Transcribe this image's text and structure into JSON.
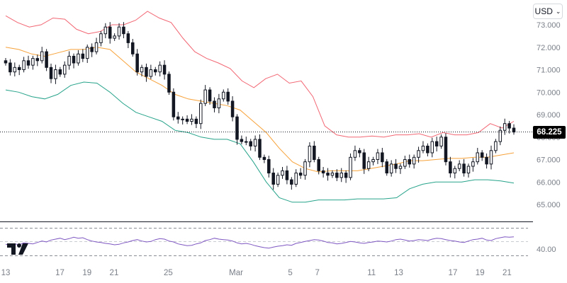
{
  "header": {
    "currency": "USD"
  },
  "current_price": "68.225",
  "colors": {
    "upper_band": "#f26673",
    "middle_band": "#f7a23a",
    "lower_band": "#26a38a",
    "rsi": "#7e57c2",
    "candle": "#131722"
  },
  "chart_data": [
    {
      "type": "candlestick",
      "y_ticks": [
        "73.000",
        "72.000",
        "71.000",
        "70.000",
        "69.000",
        "68.000",
        "67.000",
        "66.000",
        "65.000"
      ],
      "ylim": [
        64.7,
        73.1
      ],
      "x_ticks": [
        {
          "label": "13",
          "day": 0
        },
        {
          "label": "17",
          "day": 4
        },
        {
          "label": "19",
          "day": 6
        },
        {
          "label": "21",
          "day": 8
        },
        {
          "label": "25",
          "day": 12
        },
        {
          "label": "Mar",
          "day": 17
        },
        {
          "label": "5",
          "day": 21
        },
        {
          "label": "7",
          "day": 23
        },
        {
          "label": "11",
          "day": 27
        },
        {
          "label": "13",
          "day": 29
        },
        {
          "label": "17",
          "day": 33
        },
        {
          "label": "19",
          "day": 35
        },
        {
          "label": "21",
          "day": 37
        }
      ],
      "xlim": [
        0,
        37.5
      ],
      "series": [
        {
          "name": "",
          "role": "price",
          "values": [
            71.3,
            70.9,
            71.1,
            71.0,
            71.4,
            71.2,
            71.5,
            71.4,
            71.8,
            71.1,
            70.6,
            71.0,
            70.8,
            71.2,
            71.6,
            71.3,
            71.7,
            71.5,
            72.0,
            71.8,
            72.2,
            72.6,
            72.9,
            72.4,
            72.5,
            72.9,
            72.6,
            72.2,
            71.7,
            70.9,
            71.1,
            70.7,
            71.0,
            70.9,
            71.2,
            70.8,
            70.0,
            68.9,
            68.8,
            68.8,
            68.7,
            68.8,
            68.6,
            69.5,
            70.1,
            69.6,
            69.3,
            69.7,
            70.0,
            69.6,
            68.9,
            67.9,
            67.8,
            67.8,
            67.6,
            67.9,
            67.1,
            67.0,
            66.4,
            65.9,
            66.3,
            66.5,
            66.1,
            65.9,
            66.4,
            66.3,
            66.9,
            67.6,
            67.0,
            66.5,
            66.4,
            66.3,
            66.4,
            66.2,
            66.4,
            66.2,
            67.1,
            67.4,
            67.3,
            66.6,
            66.9,
            67.0,
            67.3,
            66.9,
            66.4,
            66.8,
            66.6,
            66.7,
            67.0,
            66.8,
            67.1,
            67.4,
            67.6,
            67.3,
            67.8,
            67.6,
            68.0,
            66.9,
            66.4,
            66.6,
            66.8,
            66.4,
            66.7,
            66.9,
            67.3,
            67.1,
            66.8,
            67.4,
            67.8,
            68.3,
            68.6,
            68.4,
            68.225
          ]
        },
        {
          "name": "",
          "role": "upper_band",
          "values": [
            73.4,
            73.1,
            72.9,
            73.0,
            73.3,
            73.25,
            72.8,
            72.6,
            72.7,
            73.0,
            73.0,
            73.2,
            73.6,
            73.3,
            73.1,
            72.4,
            71.8,
            71.5,
            71.3,
            71.05,
            70.5,
            70.2,
            70.6,
            70.8,
            70.4,
            70.5,
            69.8,
            68.5,
            68.1,
            68.0,
            68.0,
            68.05,
            68.0,
            68.1,
            68.1,
            68.15,
            68.0,
            68.2,
            68.1,
            68.1,
            68.2,
            68.6,
            68.4,
            68.7
          ]
        },
        {
          "name": "",
          "role": "middle_band",
          "values": [
            72.0,
            71.9,
            71.7,
            71.6,
            71.75,
            71.9,
            71.9,
            72.0,
            71.9,
            71.4,
            70.9,
            70.6,
            70.3,
            69.9,
            69.7,
            69.6,
            69.5,
            69.4,
            69.2,
            68.7,
            68.2,
            67.5,
            66.9,
            66.6,
            66.45,
            66.5,
            66.5,
            66.5,
            66.6,
            66.7,
            66.8,
            66.95,
            66.95,
            67.0,
            67.05,
            67.05,
            67.1,
            67.1,
            67.2,
            67.3
          ]
        },
        {
          "name": "",
          "role": "lower_band",
          "values": [
            70.1,
            70.0,
            69.8,
            69.7,
            69.9,
            70.3,
            70.45,
            70.4,
            70.0,
            69.5,
            69.1,
            68.9,
            68.7,
            68.3,
            68.2,
            68.0,
            67.9,
            67.9,
            67.7,
            66.9,
            66.0,
            65.3,
            65.1,
            65.1,
            65.2,
            65.2,
            65.2,
            65.25,
            65.25,
            65.25,
            65.3,
            65.7,
            65.9,
            66.0,
            66.0,
            66.0,
            66.1,
            66.1,
            66.05,
            65.95
          ]
        }
      ]
    },
    {
      "type": "line",
      "y_ticks": [
        "40.00"
      ],
      "ylim": [
        20,
        80
      ],
      "series": [
        {
          "name": "",
          "role": "rsi",
          "values": [
            45,
            43,
            46,
            44,
            48,
            47,
            46,
            49,
            52,
            50,
            54,
            56,
            58,
            55,
            57,
            60,
            58,
            59,
            55,
            52,
            50,
            49,
            47,
            46,
            44,
            45,
            48,
            50,
            53,
            55,
            52,
            50,
            51,
            55,
            57,
            56,
            52,
            50,
            46,
            44,
            42,
            43,
            46,
            48,
            53,
            55,
            58,
            56,
            55,
            54,
            52,
            48,
            46,
            47,
            45,
            42,
            40,
            38,
            37,
            39,
            41,
            42,
            44,
            43,
            47,
            49,
            51,
            53,
            55,
            54,
            52,
            49,
            48,
            46,
            47,
            49,
            51,
            50,
            48,
            47,
            49,
            50,
            52,
            51,
            50,
            52,
            55,
            56,
            54,
            52,
            53,
            55,
            54,
            53,
            56,
            58,
            57,
            55,
            53,
            52,
            50,
            49,
            52,
            55,
            56,
            58,
            54,
            53,
            57,
            59,
            61,
            60,
            61
          ]
        }
      ]
    }
  ]
}
